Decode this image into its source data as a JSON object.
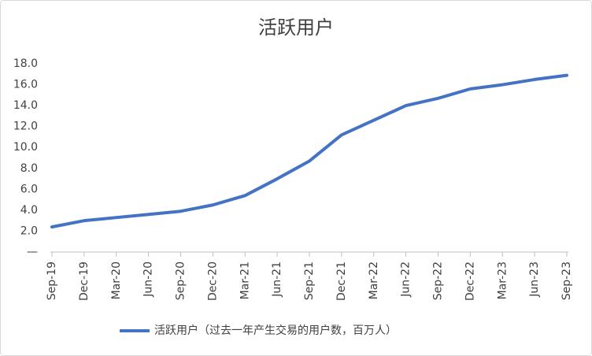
{
  "chart_data": {
    "type": "line",
    "title": "活跃用户",
    "categories": [
      "Sep-19",
      "Dec-19",
      "Mar-20",
      "Jun-20",
      "Sep-20",
      "Dec-20",
      "Mar-21",
      "Jun-21",
      "Sep-21",
      "Dec-21",
      "Mar-22",
      "Jun-22",
      "Sep-22",
      "Dec-22",
      "Mar-23",
      "Jun-23",
      "Sep-23"
    ],
    "series": [
      {
        "name": "活跃用户（过去一年产生交易的用户数，百万人）",
        "color": "#4472c4",
        "values": [
          2.4,
          3.0,
          3.3,
          3.6,
          3.9,
          4.5,
          5.4,
          7.0,
          8.7,
          11.2,
          12.6,
          14.0,
          14.7,
          15.6,
          16.0,
          16.5,
          16.9
        ]
      }
    ],
    "ylim": [
      0,
      18
    ],
    "yticks": [
      {
        "value": 0,
        "label": "—"
      },
      {
        "value": 2,
        "label": "2.0"
      },
      {
        "value": 4,
        "label": "4.0"
      },
      {
        "value": 6,
        "label": "6.0"
      },
      {
        "value": 8,
        "label": "8.0"
      },
      {
        "value": 10,
        "label": "10.0"
      },
      {
        "value": 12,
        "label": "12.0"
      },
      {
        "value": 14,
        "label": "14.0"
      },
      {
        "value": 16,
        "label": "16.0"
      },
      {
        "value": 18,
        "label": "18.0"
      }
    ],
    "legend": "bottom"
  }
}
